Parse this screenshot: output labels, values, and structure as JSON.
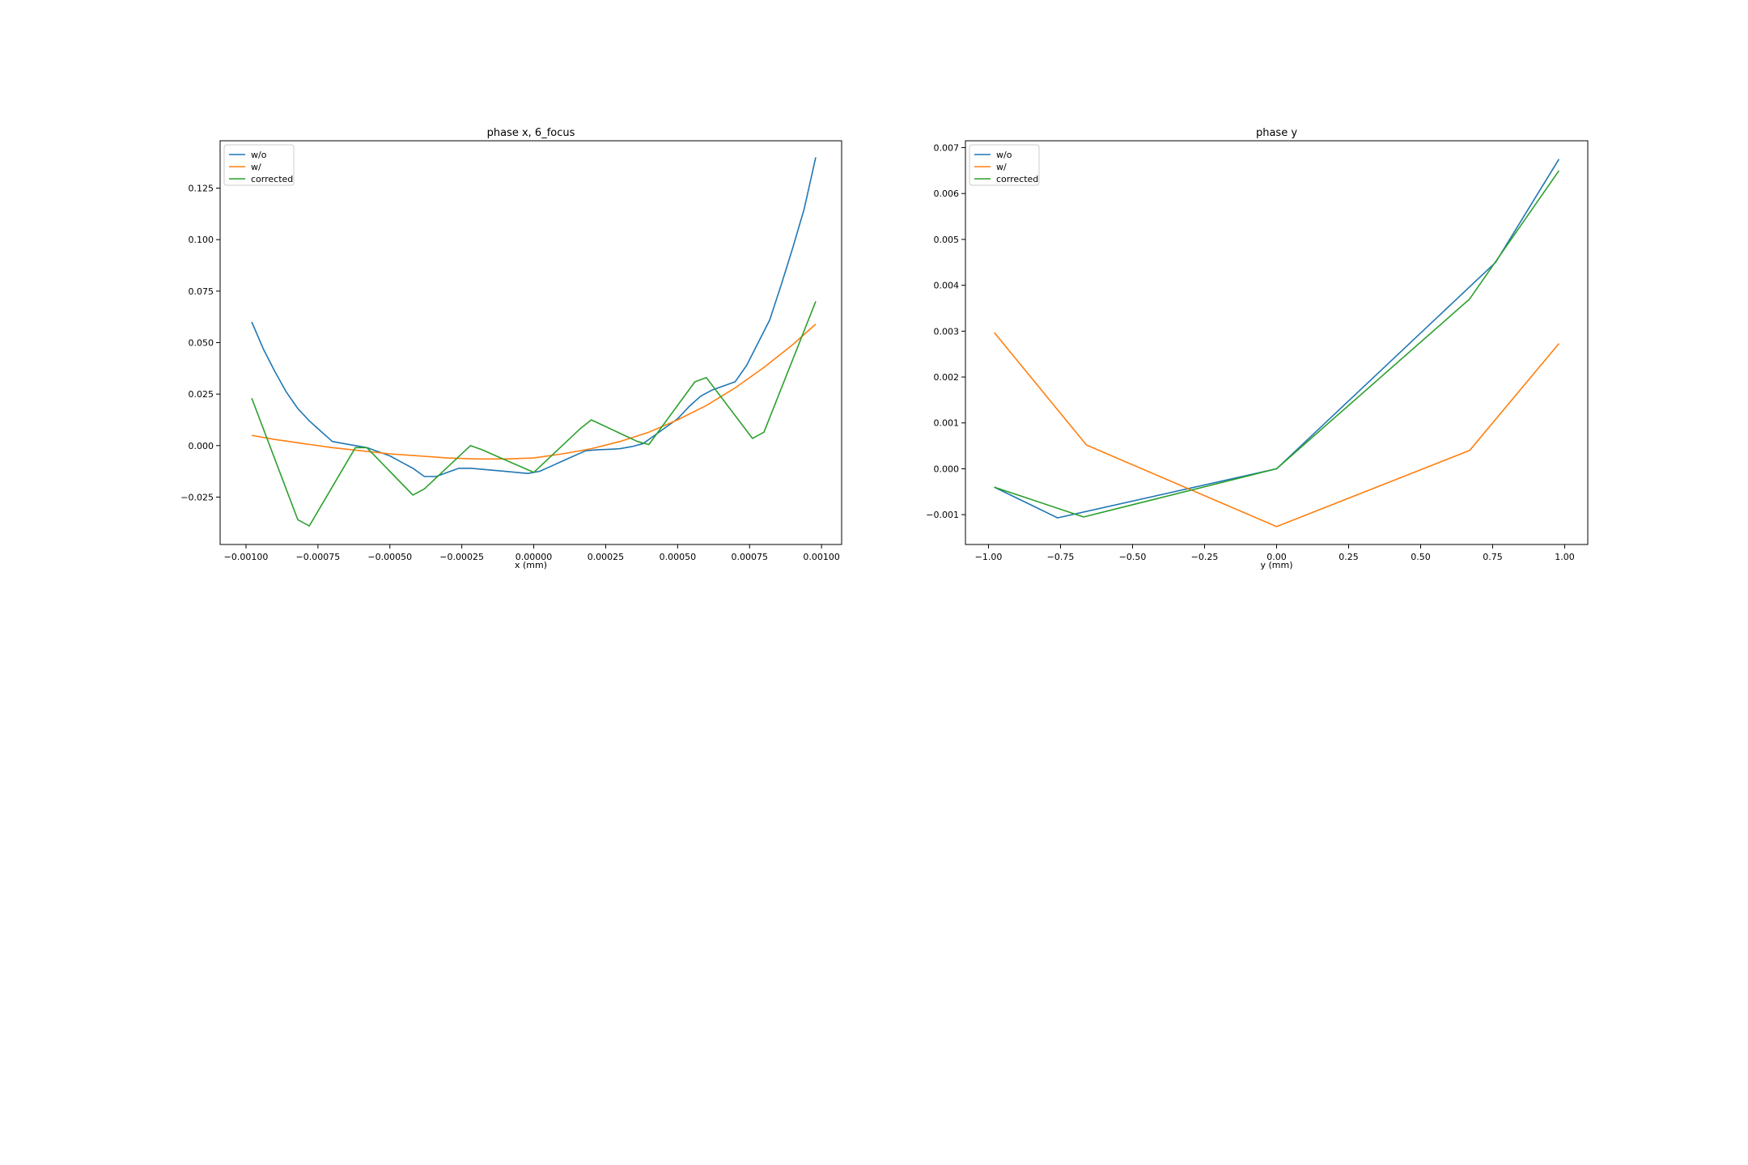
{
  "chart_data": [
    {
      "type": "line",
      "title": "phase x, 6_focus",
      "xlabel": "x (mm)",
      "ylabel": "",
      "xlim": [
        -0.00109,
        0.00107
      ],
      "ylim": [
        -0.048,
        0.148
      ],
      "xticks": [
        -0.001,
        -0.00075,
        -0.0005,
        -0.00025,
        0.0,
        0.00025,
        0.0005,
        0.00075,
        0.001
      ],
      "xtick_labels": [
        "−0.00100",
        "−0.00075",
        "−0.00050",
        "−0.00025",
        "0.00000",
        "0.00025",
        "0.00050",
        "0.00075",
        "0.00100"
      ],
      "yticks": [
        -0.025,
        0.0,
        0.025,
        0.05,
        0.075,
        0.1,
        0.125
      ],
      "ytick_labels": [
        "−0.025",
        "0.000",
        "0.025",
        "0.050",
        "0.075",
        "0.100",
        "0.125"
      ],
      "legend_position": "top-left",
      "grid": false,
      "series": [
        {
          "name": "w/o",
          "color": "#1f77b4",
          "x": [
            -0.00098,
            -0.00094,
            -0.0009,
            -0.00086,
            -0.00082,
            -0.00078,
            -0.00074,
            -0.0007,
            -0.00066,
            -0.00062,
            -0.00058,
            -0.00054,
            -0.0005,
            -0.00046,
            -0.00042,
            -0.00038,
            -0.00034,
            -0.0003,
            -0.00026,
            -0.00022,
            -0.00018,
            -0.00014,
            -0.0001,
            -6e-05,
            -2e-05,
            2e-05,
            6e-05,
            0.0001,
            0.00014,
            0.00018,
            0.00022,
            0.00026,
            0.0003,
            0.00034,
            0.00038,
            0.00042,
            0.00046,
            0.0005,
            0.00054,
            0.00058,
            0.00062,
            0.00066,
            0.0007,
            0.00074,
            0.00078,
            0.00082,
            0.00086,
            0.0009,
            0.00094,
            0.00098
          ],
          "y": [
            0.06,
            0.047,
            0.036,
            0.026,
            0.018,
            0.012,
            0.007,
            0.002,
            0.001,
            0.0,
            -0.001,
            -0.003,
            -0.005,
            -0.008,
            -0.011,
            -0.015,
            -0.015,
            -0.013,
            -0.011,
            -0.011,
            -0.0115,
            -0.012,
            -0.0125,
            -0.013,
            -0.0135,
            -0.0125,
            -0.01,
            -0.0075,
            -0.005,
            -0.0025,
            -0.002,
            -0.0018,
            -0.0015,
            -0.0005,
            0.001,
            0.005,
            0.009,
            0.013,
            0.019,
            0.024,
            0.027,
            0.029,
            0.031,
            0.039,
            0.05,
            0.061,
            0.078,
            0.096,
            0.115,
            0.14
          ]
        },
        {
          "name": "w/",
          "color": "#ff7f0e",
          "x": [
            -0.00098,
            -0.0009,
            -0.0008,
            -0.0007,
            -0.0006,
            -0.0005,
            -0.0004,
            -0.0003,
            -0.0002,
            -0.0001,
            0.0,
            0.0001,
            0.0002,
            0.0003,
            0.0004,
            0.0005,
            0.0006,
            0.0007,
            0.0008,
            0.0009,
            0.00098
          ],
          "y": [
            0.005,
            0.003,
            0.001,
            -0.001,
            -0.0025,
            -0.004,
            -0.005,
            -0.006,
            -0.0065,
            -0.0065,
            -0.006,
            -0.004,
            -0.0015,
            0.002,
            0.0065,
            0.0125,
            0.0195,
            0.028,
            0.038,
            0.049,
            0.059
          ]
        },
        {
          "name": "corrected",
          "color": "#2ca02c",
          "x": [
            -0.00098,
            -0.00082,
            -0.00078,
            -0.00062,
            -0.00058,
            -0.00042,
            -0.00038,
            -0.00022,
            -0.00018,
            0.0,
            0.00016,
            0.0002,
            0.00036,
            0.0004,
            0.00056,
            0.0006,
            0.00076,
            0.0008,
            0.00098
          ],
          "y": [
            0.023,
            -0.036,
            -0.039,
            -0.001,
            -0.001,
            -0.024,
            -0.021,
            0.0,
            -0.002,
            -0.013,
            0.008,
            0.0125,
            0.002,
            0.0005,
            0.031,
            0.033,
            0.0035,
            0.0065,
            0.07
          ]
        }
      ]
    },
    {
      "type": "line",
      "title": "phase y",
      "xlabel": "y (mm)",
      "ylabel": "",
      "xlim": [
        -1.08,
        1.08
      ],
      "ylim": [
        -0.00165,
        0.00715
      ],
      "xticks": [
        -1.0,
        -0.75,
        -0.5,
        -0.25,
        0.0,
        0.25,
        0.5,
        0.75,
        1.0
      ],
      "xtick_labels": [
        "−1.00",
        "−0.75",
        "−0.50",
        "−0.25",
        "0.00",
        "0.25",
        "0.50",
        "0.75",
        "1.00"
      ],
      "yticks": [
        -0.001,
        0.0,
        0.001,
        0.002,
        0.003,
        0.004,
        0.005,
        0.006,
        0.007
      ],
      "ytick_labels": [
        "−0.001",
        "0.000",
        "0.001",
        "0.002",
        "0.003",
        "0.004",
        "0.005",
        "0.006",
        "0.007"
      ],
      "legend_position": "top-left",
      "grid": false,
      "series": [
        {
          "name": "w/o",
          "color": "#1f77b4",
          "x": [
            -0.98,
            -0.76,
            0.0,
            0.76,
            0.98
          ],
          "y": [
            -0.0004,
            -0.00107,
            0.0,
            0.0045,
            0.00675
          ]
        },
        {
          "name": "w/",
          "color": "#ff7f0e",
          "x": [
            -0.98,
            -0.66,
            0.0,
            0.67,
            0.98
          ],
          "y": [
            0.00297,
            0.00052,
            -0.00126,
            0.0004,
            0.00273
          ]
        },
        {
          "name": "corrected",
          "color": "#2ca02c",
          "x": [
            -0.98,
            -0.67,
            0.0,
            0.67,
            0.98
          ],
          "y": [
            -0.0004,
            -0.00105,
            0.0,
            0.0037,
            0.0065
          ]
        }
      ]
    }
  ]
}
